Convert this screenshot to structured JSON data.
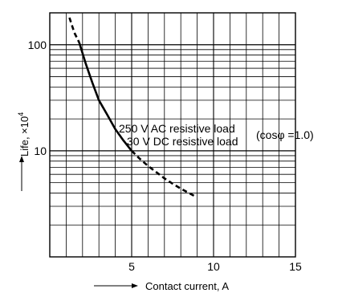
{
  "chart_data": {
    "type": "line",
    "xlabel": "Contact current, A",
    "ylabel": "Life, ×10",
    "ylabel_sup": "4",
    "xlim": [
      0,
      15
    ],
    "ylim": [
      1,
      200
    ],
    "yscale": "log",
    "grid": true,
    "x_ticks": [
      {
        "value": 5,
        "label": "5"
      },
      {
        "value": 10,
        "label": "10"
      },
      {
        "value": 15,
        "label": "15"
      }
    ],
    "y_ticks": [
      {
        "value": 10,
        "label": "10"
      },
      {
        "value": 100,
        "label": "100"
      }
    ],
    "series": [
      {
        "style": "dashed",
        "x": [
          1.2,
          1.5,
          1.8
        ],
        "y": [
          180,
          130,
          105
        ]
      },
      {
        "style": "solid",
        "x": [
          1.8,
          2.2,
          2.6,
          3.0,
          3.5,
          4.0,
          4.5,
          5.0
        ],
        "y": [
          105,
          66,
          44,
          30,
          22,
          16,
          12.5,
          10
        ]
      },
      {
        "style": "dashed",
        "x": [
          5.0,
          5.5,
          6.0,
          6.5,
          7.0,
          7.5,
          8.0,
          8.5,
          8.9
        ],
        "y": [
          10,
          8.4,
          7.2,
          6.3,
          5.5,
          4.9,
          4.4,
          4.0,
          3.7
        ]
      }
    ],
    "annotations": [
      {
        "text": "250 V AC resistive load"
      },
      {
        "text": "30 V DC resistive load"
      },
      {
        "text": "(cosφ =1.0)"
      }
    ],
    "colors": {
      "line": "#000000",
      "grid": "#000000",
      "background": "#ffffff"
    }
  }
}
